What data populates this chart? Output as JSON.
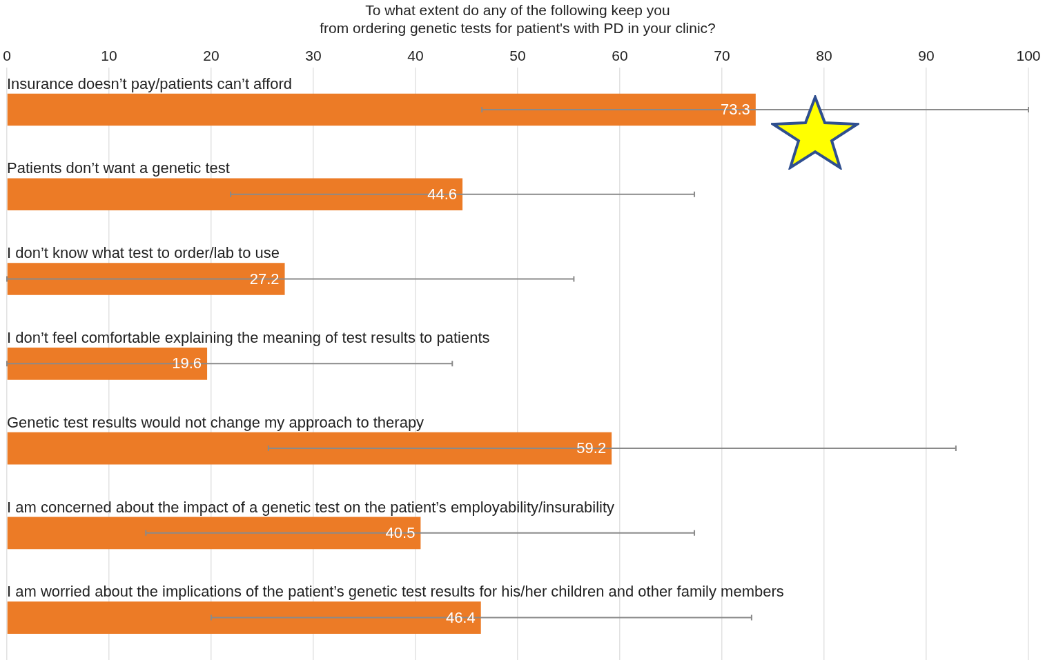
{
  "chart_data": {
    "type": "bar",
    "orientation": "horizontal",
    "title": "To what extent do any of the following keep you\nfrom ordering genetic tests for patient's with PD in your clinic?",
    "categories": [
      "Insurance doesn’t pay/patients can’t afford",
      "Patients don’t want a genetic test",
      "I don’t know what test to order/lab to use",
      "I don’t feel comfortable explaining the meaning of test results to patients",
      "Genetic test results would not change my approach to therapy",
      "I am concerned about the impact of a genetic test on the patient’s employability/insurability",
      "I am worried about the implications of the patient’s genetic test results for his/her children and other family members"
    ],
    "values": [
      73.3,
      44.6,
      27.2,
      19.6,
      59.2,
      40.5,
      46.4
    ],
    "errors": [
      [
        46.5,
        100
      ],
      [
        21.9,
        67.3
      ],
      [
        0,
        55.5
      ],
      [
        0,
        43.6
      ],
      [
        25.6,
        92.9
      ],
      [
        13.6,
        67.3
      ],
      [
        20,
        72.9
      ]
    ],
    "color": "#ec7b26",
    "xlim": [
      0,
      100
    ],
    "xticks": [
      0,
      10,
      20,
      30,
      40,
      50,
      60,
      70,
      80,
      90,
      100
    ],
    "grid": "x",
    "data_labels": true,
    "legend": false
  }
}
